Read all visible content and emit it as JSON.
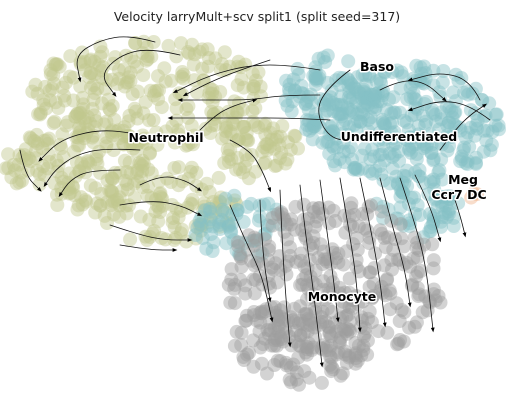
{
  "chart_data": {
    "type": "scatter",
    "title": "Velocity larryMult+scv split1 (split seed=317)",
    "xlabel": "",
    "ylabel": "",
    "grid": false,
    "axes_visible": false,
    "legend": "none (cluster names drawn on the embedding)",
    "overlay": "velocity streamlines with arrowheads",
    "clusters": [
      {
        "name": "Neutrophil",
        "color": "#c2c78f"
      },
      {
        "name": "Undifferentiated",
        "color": "#86c2c6"
      },
      {
        "name": "Baso",
        "color": "#86c2c6"
      },
      {
        "name": "Monocyte",
        "color": "#9e9e9e"
      },
      {
        "name": "Meg",
        "color": "#f0b48c"
      },
      {
        "name": "Ccr7 DC",
        "color": "#f0b48c"
      }
    ]
  }
}
